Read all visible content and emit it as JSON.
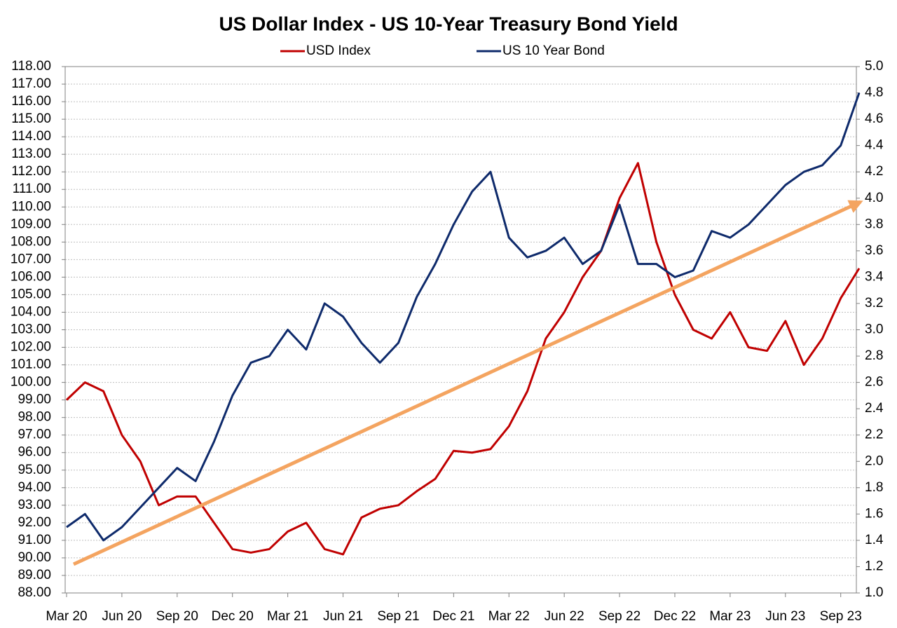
{
  "chart_data": {
    "type": "line",
    "title": "US Dollar Index - US 10-Year Treasury Bond Yield",
    "categories": [
      "Mar 20",
      null,
      null,
      "Jun 20",
      null,
      null,
      "Sep 20",
      null,
      null,
      "Dec 20",
      null,
      null,
      "Mar 21",
      null,
      null,
      "Jun 21",
      null,
      null,
      "Sep 21",
      null,
      null,
      "Dec 21",
      null,
      null,
      "Mar 22",
      null,
      null,
      "Jun 22",
      null,
      null,
      "Sep 22",
      null,
      null,
      "Dec 22",
      null,
      null,
      "Mar 23",
      null,
      null,
      "Jun 23",
      null,
      null,
      "Sep 23",
      null
    ],
    "series": [
      {
        "name": "USD Index",
        "color": "#c00000",
        "values": [
          99.0,
          100.0,
          99.5,
          97.0,
          95.5,
          93.0,
          93.5,
          93.5,
          92.0,
          90.5,
          90.3,
          90.5,
          91.5,
          92.0,
          90.5,
          90.2,
          92.3,
          92.8,
          93.0,
          93.8,
          94.5,
          96.1,
          96.0,
          96.2,
          97.5,
          99.5,
          102.5,
          104.0,
          106.0,
          107.5,
          110.5,
          112.5,
          108.0,
          105.0,
          103.0,
          102.5,
          104.0,
          102.0,
          101.8,
          103.5,
          101.0,
          102.5,
          104.8,
          106.5
        ]
      },
      {
        "name": "US 10 Year Bond",
        "color": "#0e2a6b",
        "axis": "y2",
        "values": [
          1.5,
          1.6,
          1.4,
          1.5,
          1.65,
          1.8,
          1.95,
          1.85,
          2.15,
          2.5,
          2.75,
          2.8,
          3.0,
          2.85,
          3.2,
          3.1,
          2.9,
          2.75,
          2.9,
          3.25,
          3.5,
          3.8,
          4.05,
          4.2,
          3.7,
          3.55,
          3.6,
          3.7,
          3.5,
          3.6,
          3.95,
          3.5,
          3.5,
          3.4,
          3.45,
          3.75,
          3.7,
          3.8,
          3.95,
          4.1,
          4.2,
          4.25,
          4.4,
          4.8
        ]
      }
    ],
    "ylim": [
      88,
      118
    ],
    "yticks": [
      {
        "value": 88,
        "label": "88.00"
      },
      {
        "value": 89,
        "label": "89.00"
      },
      {
        "value": 90,
        "label": "90.00"
      },
      {
        "value": 91,
        "label": "91.00"
      },
      {
        "value": 92,
        "label": "92.00"
      },
      {
        "value": 93,
        "label": "93.00"
      },
      {
        "value": 94,
        "label": "94.00"
      },
      {
        "value": 95,
        "label": "95.00"
      },
      {
        "value": 96,
        "label": "96.00"
      },
      {
        "value": 97,
        "label": "97.00"
      },
      {
        "value": 98,
        "label": "98.00"
      },
      {
        "value": 99,
        "label": "99.00"
      },
      {
        "value": 100,
        "label": "100.00"
      },
      {
        "value": 101,
        "label": "101.00"
      },
      {
        "value": 102,
        "label": "102.00"
      },
      {
        "value": 103,
        "label": "103.00"
      },
      {
        "value": 104,
        "label": "104.00"
      },
      {
        "value": 105,
        "label": "105.00"
      },
      {
        "value": 106,
        "label": "106.00"
      },
      {
        "value": 107,
        "label": "107.00"
      },
      {
        "value": 108,
        "label": "108.00"
      },
      {
        "value": 109,
        "label": "109.00"
      },
      {
        "value": 110,
        "label": "110.00"
      },
      {
        "value": 111,
        "label": "111.00"
      },
      {
        "value": 112,
        "label": "112.00"
      },
      {
        "value": 113,
        "label": "113.00"
      },
      {
        "value": 114,
        "label": "114.00"
      },
      {
        "value": 115,
        "label": "115.00"
      },
      {
        "value": 116,
        "label": "116.00"
      },
      {
        "value": 117,
        "label": "117.00"
      },
      {
        "value": 118,
        "label": "118.00"
      }
    ],
    "y2lim": [
      1,
      5
    ],
    "y2ticks": [
      {
        "value": 1,
        "label": "1.0"
      },
      1.2,
      1.4,
      1.6,
      1.8,
      {
        "value": 2,
        "label": "2.0"
      },
      2.2,
      2.4,
      2.6,
      2.8,
      {
        "value": 3,
        "label": "3.0"
      },
      3.2,
      3.4,
      3.6,
      3.8,
      {
        "value": 4,
        "label": "4.0"
      },
      4.2,
      4.4,
      4.6,
      4.8,
      {
        "value": 5,
        "label": "5.0"
      }
    ],
    "grid": true,
    "legend": "top"
  }
}
